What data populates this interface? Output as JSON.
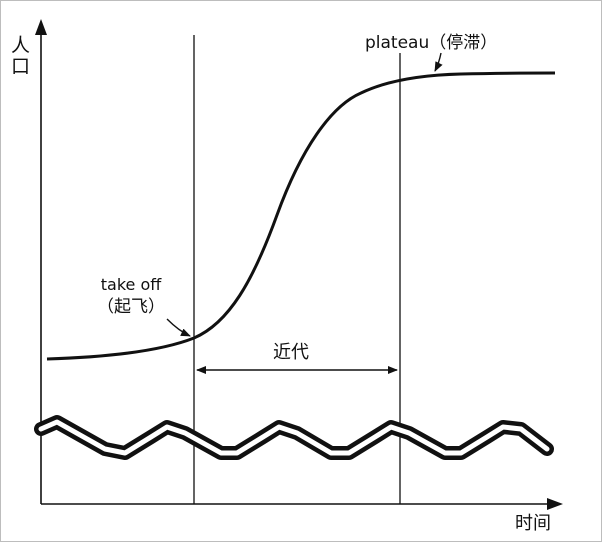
{
  "axes": {
    "y_label": "人口",
    "x_label": "时间"
  },
  "annotations": {
    "plateau": "plateau（停滞）",
    "take_off_line1": "take off",
    "take_off_line2": "（起飞）",
    "modern_era": "近代"
  },
  "colors": {
    "ink": "#111111",
    "background": "#ffffff"
  }
}
